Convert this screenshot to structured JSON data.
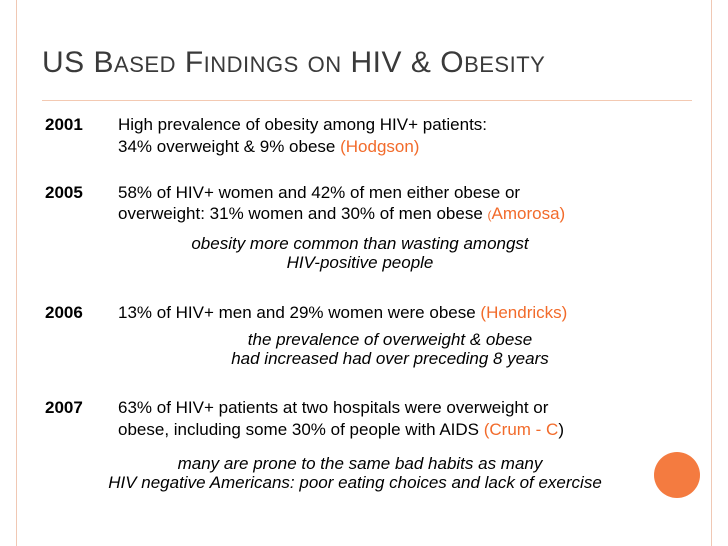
{
  "slide": {
    "title": {
      "w1_first": "US",
      "w2_first": "B",
      "w2_rest": "ASED",
      "w3_first": "F",
      "w3_rest": "INDINGS",
      "w4": "ON",
      "w5": "HIV",
      "w6": "&",
      "w7_first": "O",
      "w7_rest": "BESITY"
    },
    "entries": [
      {
        "year": "2001",
        "line1": "High prevalence of obesity among HIV+ patients:",
        "line2": "34% overweight & 9% obese ",
        "citation": "(Hodgson)"
      },
      {
        "year": "2005",
        "line1": "58% of HIV+ women and 42% of men either obese or",
        "line2": "overweight: 31% women and 30% of men obese ",
        "citation_open": "(",
        "citation": "Amorosa)",
        "note_line1": "obesity more common than wasting amongst",
        "note_line2": "HIV-positive people"
      },
      {
        "year": "2006",
        "line1": "13% of  HIV+ men and 29% women were obese ",
        "citation": "(Hendricks)",
        "note_line1": "the prevalence of overweight & obese",
        "note_line2": "had increased had over preceding 8 years"
      },
      {
        "year": "2007",
        "line1": "63% of HIV+ patients at two hospitals were overweight or",
        "line2": "obese, including some 30% of people with AIDS ",
        "citation": "(Crum - C",
        "citation_close": ")",
        "note_line1": "many are prone to the same bad habits as many",
        "note_line2": "HIV negative Americans: poor eating choices and lack of exercise"
      }
    ],
    "colors": {
      "accent": "#f26b2b",
      "frame": "#f0c8b4",
      "circle": "#f47b40",
      "title": "#3a3a3a"
    }
  }
}
